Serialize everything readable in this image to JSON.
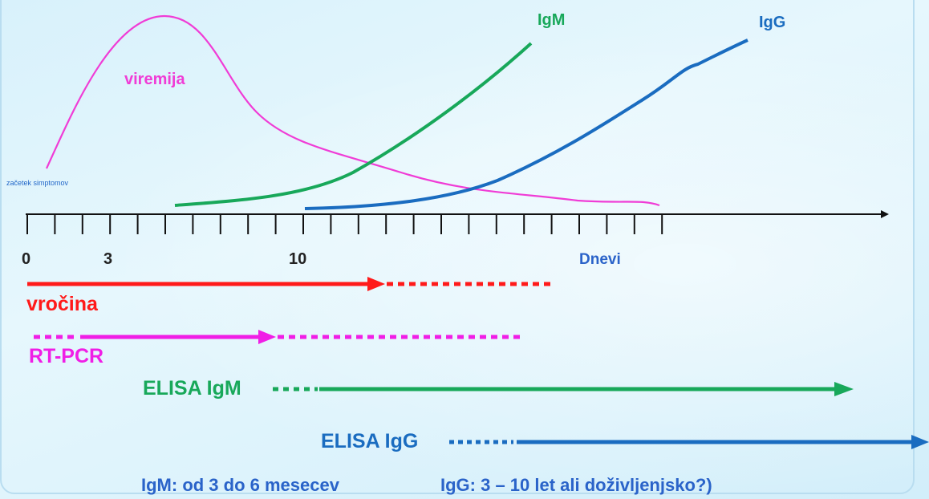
{
  "curves": {
    "viremija": "viremija",
    "igm": "IgM",
    "igg": "IgG"
  },
  "onset_label": "začetek simptomov",
  "axis": {
    "ticks": [
      "0",
      "3",
      "10"
    ],
    "unit": "Dnevi"
  },
  "bars": {
    "vrocina": "vročina",
    "rtpcr": "RT-PCR",
    "elisa_igm": "ELISA IgM",
    "elisa_igg": "ELISA IgG"
  },
  "footer": {
    "igm_note": "IgM: od 3 do 6 mesecev",
    "igg_note": "IgG: 3 – 10 let ali doživljenjsko?)"
  },
  "colors": {
    "viremija": "#f03cd6",
    "igm": "#18a85a",
    "igg": "#1a6cc0",
    "vrocina": "#ff1a1a",
    "rtpcr": "#f01ee6",
    "axis": "#111111",
    "blue_text": "#2a63c9"
  }
}
